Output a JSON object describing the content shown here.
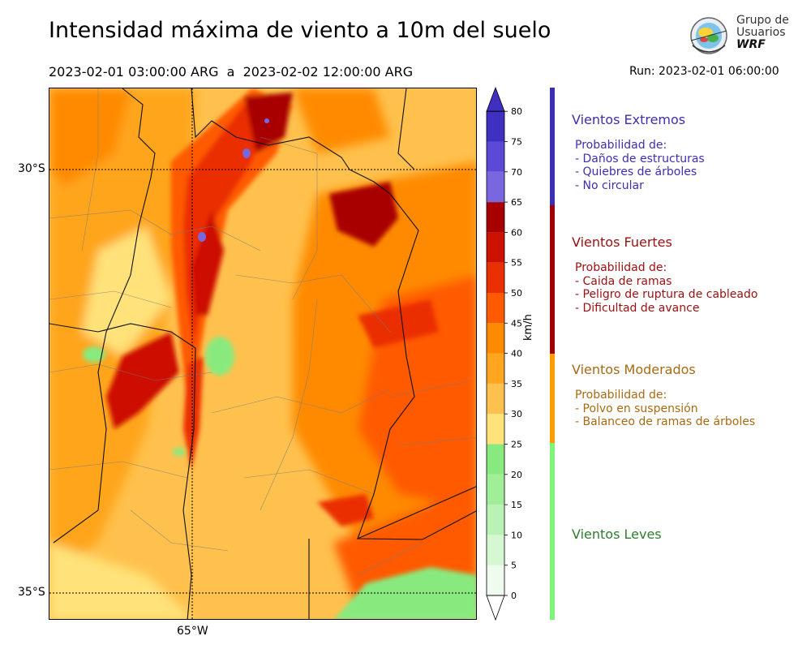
{
  "header": {
    "title": "Intensidad máxima de viento a 10m del suelo",
    "period": "2023-02-01 03:00:00 ARG  a  2023-02-02 12:00:00 ARG",
    "run": "Run: 2023-02-01 06:00:00"
  },
  "logo": {
    "line1": "Grupo de",
    "line2": "Usuarios",
    "line3": "WRF"
  },
  "map": {
    "lat_labels": [
      "30°S",
      "35°S"
    ],
    "lon_labels": [
      "65°W"
    ]
  },
  "colorbar": {
    "unit": "km/h",
    "ticks": [
      "0",
      "5",
      "10",
      "15",
      "20",
      "25",
      "30",
      "35",
      "40",
      "45",
      "50",
      "55",
      "60",
      "65",
      "70",
      "75",
      "80"
    ],
    "colors": [
      "#effbef",
      "#d5f7d2",
      "#b9f2b4",
      "#a0ee98",
      "#88ea7e",
      "#ffe27a",
      "#ffc14d",
      "#ffa51f",
      "#ff8a00",
      "#ff5a00",
      "#ea2f00",
      "#cc1100",
      "#a80000",
      "#7867de",
      "#5c49d6",
      "#4030c2"
    ]
  },
  "categories": [
    {
      "title": "Vientos Extremos",
      "lines": [
        "Probabilidad de:",
        "- Daños de estructuras",
        "- Quiebres de árboles",
        "- No circular"
      ],
      "color": "#3d2fb0",
      "bar_color": "#3a2eb5"
    },
    {
      "title": "Vientos Fuertes",
      "lines": [
        "Probabilidad de:",
        "- Caida de ramas",
        "- Peligro de ruptura de cableado",
        "- Dificultad de avance"
      ],
      "color": "#9c0f0f",
      "bar_color": "#9c0000"
    },
    {
      "title": "Vientos Moderados",
      "lines": [
        "Probabilidad de:",
        "- Polvo en suspensión",
        "- Balanceo de ramas de árboles"
      ],
      "color": "#a86a12",
      "bar_color": "#ff9c00"
    },
    {
      "title": "Vientos Leves",
      "lines": [],
      "color": "#2e7d2e",
      "bar_color": "#7ef57a"
    }
  ]
}
